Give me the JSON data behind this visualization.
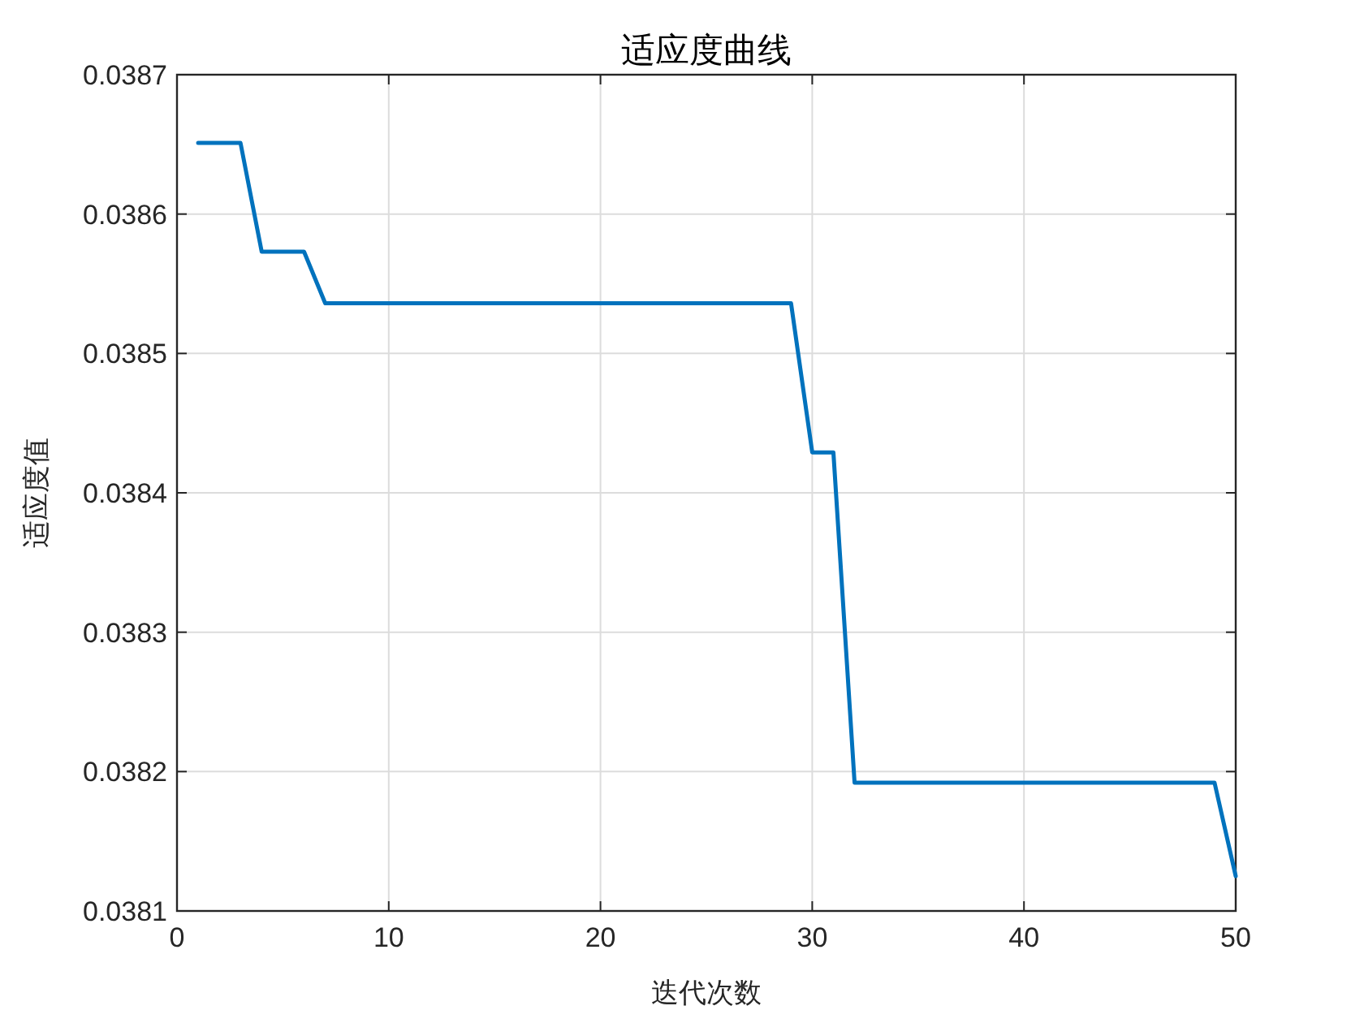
{
  "chart_data": {
    "type": "line",
    "title": "适应度曲线",
    "xlabel": "迭代次数",
    "ylabel": "适应度值",
    "x": [
      1,
      3,
      4,
      6,
      7,
      29,
      30,
      31,
      32,
      49,
      50
    ],
    "series": [
      {
        "color": "#0072bd",
        "values": [
          0.038651,
          0.038651,
          0.038573,
          0.038573,
          0.038536,
          0.038536,
          0.038429,
          0.038429,
          0.038192,
          0.038192,
          0.038125
        ]
      }
    ],
    "xlim": [
      0,
      50
    ],
    "ylim": [
      0.0381,
      0.0387
    ],
    "xticks": [
      0,
      10,
      20,
      30,
      40,
      50
    ],
    "yticks": [
      {
        "value": 0.0381,
        "label": "0.0381"
      },
      {
        "value": 0.0382,
        "label": "0.0382"
      },
      {
        "value": 0.0383,
        "label": "0.0383"
      },
      {
        "value": 0.0384,
        "label": "0.0384"
      },
      {
        "value": 0.0385,
        "label": "0.0385"
      },
      {
        "value": 0.0386,
        "label": "0.0386"
      },
      {
        "value": 0.0387,
        "label": "0.0387"
      }
    ],
    "grid": true,
    "marker": "none",
    "line_style": "solid"
  }
}
